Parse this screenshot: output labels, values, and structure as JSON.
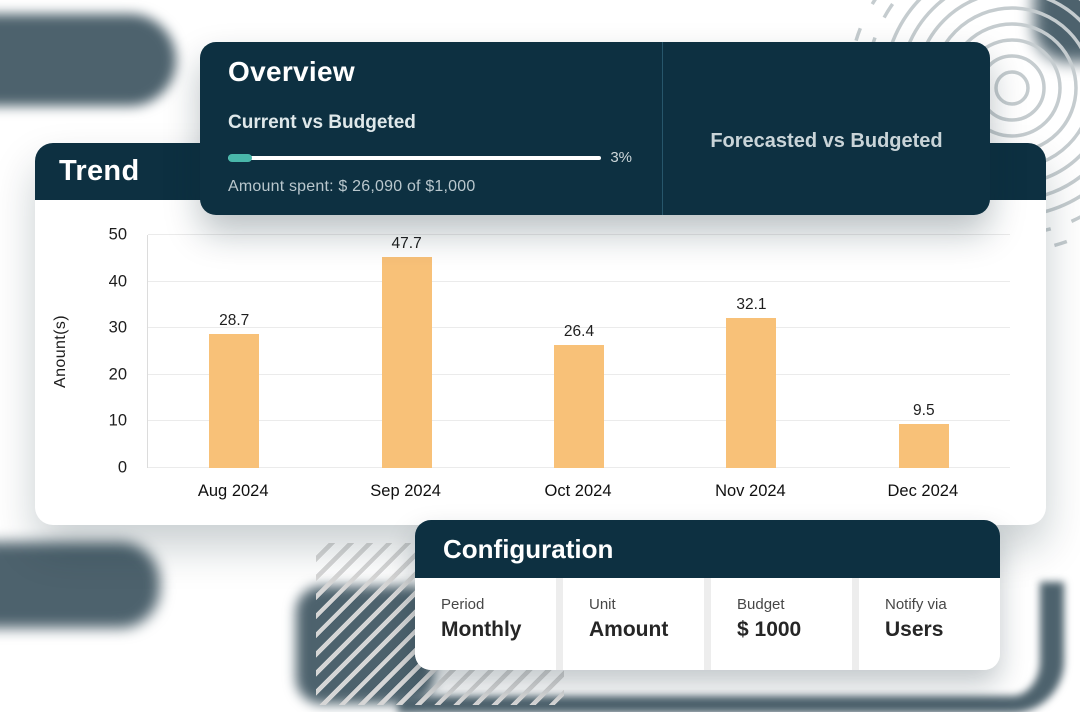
{
  "overview": {
    "title": "Overview",
    "current_heading": "Current vs Budgeted",
    "progress_percent": "3%",
    "progress_value": 3,
    "amount_spent": "Amount spent: $ 26,090 of $1,000",
    "forecast_heading": "Forecasted vs Budgeted"
  },
  "trend": {
    "title": "Trend"
  },
  "chart_data": {
    "type": "bar",
    "title": "Trend",
    "categories": [
      "Aug 2024",
      "Sep 2024",
      "Oct 2024",
      "Nov 2024",
      "Dec 2024"
    ],
    "values": [
      28.7,
      47.7,
      26.4,
      32.1,
      9.5
    ],
    "bar_labels": [
      "28.7",
      "47.7",
      "26.4",
      "32.1",
      "9.5"
    ],
    "xlabel": "",
    "ylabel": "Anount(s)",
    "ylim": [
      0,
      50
    ],
    "yticks": [
      0,
      10,
      20,
      30,
      40,
      50
    ],
    "grid": true,
    "legend": false,
    "bar_color": "#f8c178"
  },
  "configuration": {
    "title": "Configuration",
    "fields": [
      {
        "label": "Period",
        "value": "Monthly"
      },
      {
        "label": "Unit",
        "value": "Amount"
      },
      {
        "label": "Budget",
        "value": "$ 1000"
      },
      {
        "label": "Notify via",
        "value": "Users"
      }
    ]
  },
  "colors": {
    "card_dark": "#0d3041",
    "accent_teal": "#49b7aa",
    "bar_orange": "#f8c178",
    "deco_slate": "#4d626d",
    "stripe_gray": "#d6d6d6"
  }
}
